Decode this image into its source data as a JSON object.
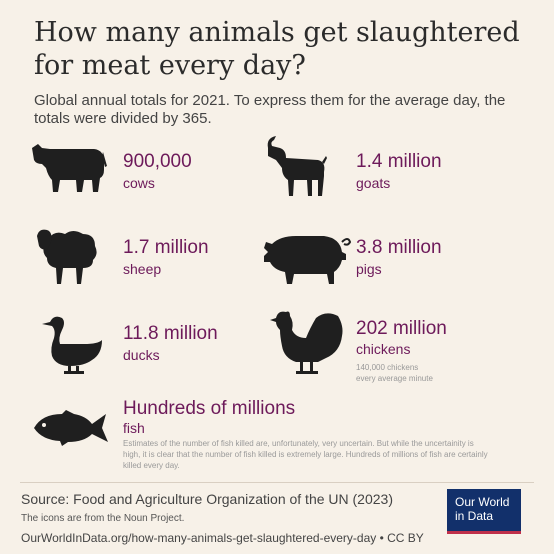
{
  "title": "How many animals get slaughtered for meat every day?",
  "subtitle": "Global annual totals for 2021. To express them for the average day, the totals were divided by 365.",
  "colors": {
    "accent": "#6d1a5a",
    "background": "#f7f1e8",
    "icon": "#1f1f1f",
    "logo_bg": "#12306b",
    "logo_bar": "#c0304b"
  },
  "chart_data": {
    "type": "table",
    "title": "How many animals get slaughtered for meat every day?",
    "rows": [
      {
        "icon": "cow-icon",
        "value": "900,000",
        "label": "cows"
      },
      {
        "icon": "goat-icon",
        "value": "1.4 million",
        "label": "goats"
      },
      {
        "icon": "sheep-icon",
        "value": "1.7 million",
        "label": "sheep"
      },
      {
        "icon": "pig-icon",
        "value": "3.8 million",
        "label": "pigs"
      },
      {
        "icon": "duck-icon",
        "value": "11.8 million",
        "label": "ducks"
      },
      {
        "icon": "chicken-icon",
        "value": "202 million",
        "label": "chickens",
        "note": [
          "140,000 chickens",
          "every average minute"
        ]
      },
      {
        "icon": "fish-icon",
        "value": "Hundreds of millions",
        "label": "fish",
        "note": "Estimates of the number of fish killed are, unfortunately, very uncertain. But while the uncertainity is high, it is clear that the number of fish killed is extremely large. Hundreds of millions of fish are certainly killed every day."
      }
    ]
  },
  "footer": {
    "source": "Source: Food and Agriculture Organization of the UN (2023)",
    "icons_credit": "The icons are from the Noun Project.",
    "url": "OurWorldInData.org/how-many-animals-get-slaughtered-every-day • CC BY",
    "logo_line1": "Our World",
    "logo_line2": "in Data"
  }
}
